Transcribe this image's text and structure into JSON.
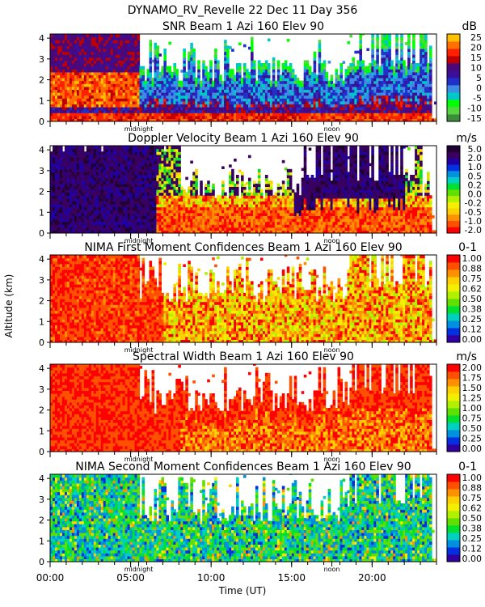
{
  "header": {
    "title": "DYNAMO_RV_Revelle   22 Dec 11 Day 356"
  },
  "colors": {
    "snr": [
      "#3b8c3b",
      "#58d63f",
      "#00ff00",
      "#00c8c8",
      "#3c8ce6",
      "#2030c8",
      "#3a0f9a",
      "#4a0878",
      "#c00000",
      "#ff2000",
      "#ff7000",
      "#ffc000"
    ],
    "velocity": [
      "#ff0000",
      "#ff5000",
      "#ff9000",
      "#ffd000",
      "#f0f000",
      "#b0f000",
      "#60e000",
      "#00e030",
      "#00d0c0",
      "#0090e0",
      "#0030e0",
      "#2000a0",
      "#3a0060",
      "#200030"
    ],
    "confidence": [
      "#3000a0",
      "#0030e0",
      "#0090e0",
      "#00d0c0",
      "#00e030",
      "#60e000",
      "#b0f000",
      "#f0f000",
      "#ffd000",
      "#ff9000",
      "#ff5000",
      "#ff0000"
    ],
    "width": [
      "#3000a0",
      "#0030e0",
      "#0090e0",
      "#00d0c0",
      "#00e030",
      "#60e000",
      "#b0f000",
      "#f0f000",
      "#ffd000",
      "#ff9000",
      "#ff5000",
      "#ff0000"
    ]
  },
  "chart_data": {
    "type": "heatmap",
    "ylabel": "Altitude (km)",
    "xlabel": "Time (UT)",
    "xlim": [
      0,
      24
    ],
    "xticks": [
      "00:00",
      "05:00",
      "10:00",
      "15:00",
      "20:00"
    ],
    "xtick_values": [
      0,
      5,
      10,
      15,
      20
    ],
    "markers": [
      {
        "label": "midnight",
        "hour": 5.5
      },
      {
        "label": "noon",
        "hour": 17.5
      }
    ],
    "ylim": [
      0,
      4.2
    ],
    "yticks": [
      "0",
      "1",
      "2",
      "3",
      "4"
    ],
    "panels": [
      {
        "title": "SNR Beam 1 Azi 160 Elev 90",
        "unit": "dB",
        "colorbar_labels": [
          "-15",
          "-10",
          "-5",
          "0",
          "5",
          "10",
          "15",
          "20",
          "25"
        ],
        "palette": "snr",
        "scheme": "snr"
      },
      {
        "title": "Doppler Velocity Beam 1 Azi 160 Elev 90",
        "unit": "m/s",
        "colorbar_labels": [
          "-2.0",
          "-1.0",
          "-0.5",
          "-0.2",
          "0.0",
          "0.2",
          "0.5",
          "1.0",
          "2.0",
          "5.0"
        ],
        "palette": "velocity",
        "scheme": "velocity"
      },
      {
        "title": "NIMA First Moment Confidences Beam 1 Azi 160 Elev 90",
        "unit": "0-1",
        "colorbar_labels": [
          "0.00",
          "0.12",
          "0.25",
          "0.38",
          "0.50",
          "0.62",
          "0.75",
          "0.88",
          "1.00"
        ],
        "palette": "confidence",
        "scheme": "conf1"
      },
      {
        "title": "Spectral Width Beam 1 Azi 160 Elev 90",
        "unit": "m/s",
        "colorbar_labels": [
          "0.00",
          "0.25",
          "0.50",
          "0.75",
          "1.00",
          "1.25",
          "1.50",
          "1.75",
          "2.00"
        ],
        "palette": "width",
        "scheme": "width"
      },
      {
        "title": "NIMA Second Moment Confidences Beam 1 Azi 160 Elev 90",
        "unit": "0-1",
        "colorbar_labels": [
          "0.00",
          "0.12",
          "0.25",
          "0.38",
          "0.50",
          "0.62",
          "0.75",
          "0.88",
          "1.00"
        ],
        "palette": "confidence",
        "scheme": "conf2"
      }
    ]
  }
}
